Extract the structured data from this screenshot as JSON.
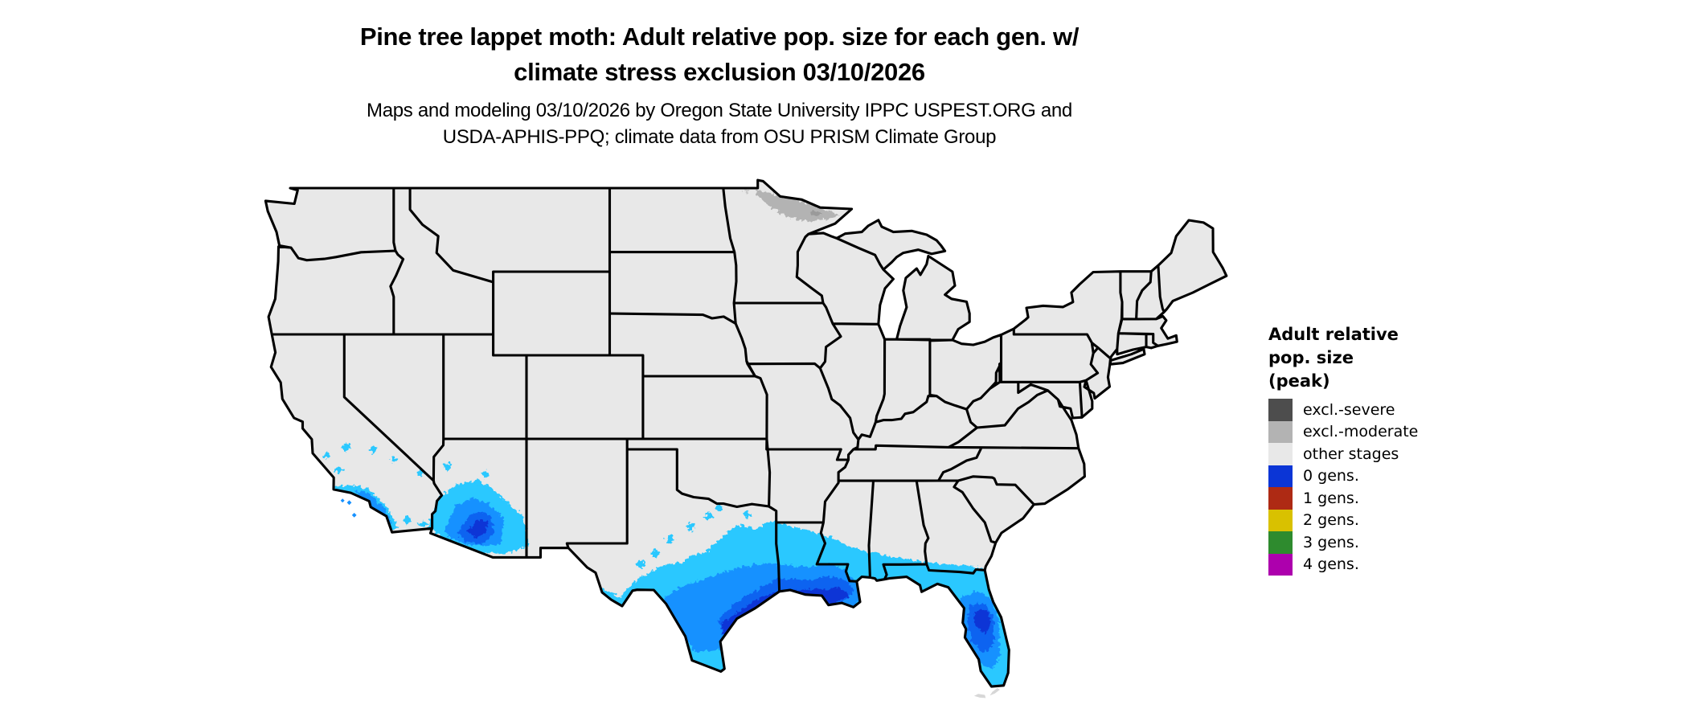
{
  "figure": {
    "background": "#ffffff",
    "kind": "species distribution model map",
    "region": "Contiguous United States"
  },
  "title": {
    "line1": "Pine tree lappet moth: Adult relative pop. size for each gen. w/",
    "line2": "climate stress exclusion 03/10/2026"
  },
  "subtitle": {
    "line1": "Maps and modeling 03/10/2026 by Oregon State University IPPC USPEST.ORG and",
    "line2": "USDA-APHIS-PPQ; climate data from OSU PRISM Climate Group"
  },
  "legend": {
    "title_lines": [
      "Adult relative",
      "pop. size",
      "(peak)"
    ],
    "items": [
      {
        "label": "excl.-severe",
        "color": "#4d4d4d"
      },
      {
        "label": "excl.-moderate",
        "color": "#b3b3b3"
      },
      {
        "label": "other stages",
        "color": "#e8e8e8"
      },
      {
        "label": "0 gens.",
        "color": "#0b35d6"
      },
      {
        "label": "1 gens.",
        "color": "#ae2a14"
      },
      {
        "label": "2 gens.",
        "color": "#d9c100"
      },
      {
        "label": "3 gens.",
        "color": "#2e8b2e"
      },
      {
        "label": "4 gens.",
        "color": "#ad00ad"
      }
    ]
  },
  "map": {
    "base_fill": "#e8e8e8",
    "border_color": "#000000",
    "keys_color": "#d7d7d7",
    "overlay_colors": {
      "pop_low": "#29c8ff",
      "pop_mid": "#1691ff",
      "pop_high": "#0a63f0",
      "pop_peak": "#0b35d6",
      "excl_moderate": "#b3b3b3",
      "excl_moderate_dark": "#9a9a9a",
      "excl_faint": "#c9c9c9"
    },
    "regions_shaded": [
      {
        "area": "Southern and coastal Texas into Louisiana, Mississippi, Alabama Gulf Coast",
        "value": "adult relative pop. gradient (light to dark blue)"
      },
      {
        "area": "Florida peninsula with dark blue core in central Florida",
        "value": "adult relative pop. gradient"
      },
      {
        "area": "Southern Arizona and coastal Southern California",
        "value": "adult relative pop. gradient"
      },
      {
        "area": "Northern Minnesota border strip",
        "value": "excl.-moderate (gray)"
      },
      {
        "area": "Florida Keys",
        "value": "unmodeled / masked (light gray)"
      }
    ]
  }
}
